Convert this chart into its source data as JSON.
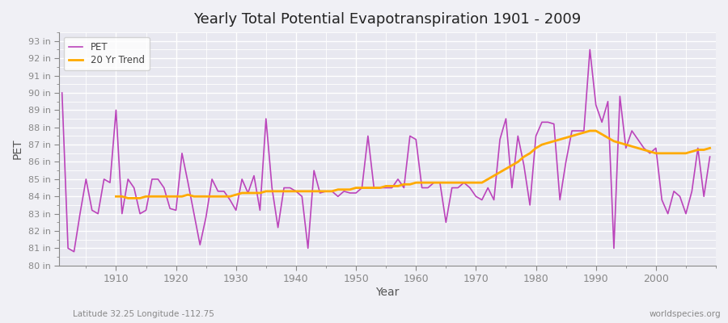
{
  "title": "Yearly Total Potential Evapotranspiration 1901 - 2009",
  "xlabel": "Year",
  "ylabel": "PET",
  "footnote_left": "Latitude 32.25 Longitude -112.75",
  "footnote_right": "worldspecies.org",
  "ylim": [
    80,
    93.5
  ],
  "xlim": [
    1900.5,
    2010
  ],
  "bg_color": "#f0f0f5",
  "plot_bg_color": "#e8e8f0",
  "grid_color": "#ffffff",
  "pet_color": "#bb44bb",
  "trend_color": "#ffaa00",
  "years": [
    1901,
    1902,
    1903,
    1904,
    1905,
    1906,
    1907,
    1908,
    1909,
    1910,
    1911,
    1912,
    1913,
    1914,
    1915,
    1916,
    1917,
    1918,
    1919,
    1920,
    1921,
    1922,
    1923,
    1924,
    1925,
    1926,
    1927,
    1928,
    1929,
    1930,
    1931,
    1932,
    1933,
    1934,
    1935,
    1936,
    1937,
    1938,
    1939,
    1940,
    1941,
    1942,
    1943,
    1944,
    1945,
    1946,
    1947,
    1948,
    1949,
    1950,
    1951,
    1952,
    1953,
    1954,
    1955,
    1956,
    1957,
    1958,
    1959,
    1960,
    1961,
    1962,
    1963,
    1964,
    1965,
    1966,
    1967,
    1968,
    1969,
    1970,
    1971,
    1972,
    1973,
    1974,
    1975,
    1976,
    1977,
    1978,
    1979,
    1980,
    1981,
    1982,
    1983,
    1984,
    1985,
    1986,
    1987,
    1988,
    1989,
    1990,
    1991,
    1992,
    1993,
    1994,
    1995,
    1996,
    1997,
    1998,
    1999,
    2000,
    2001,
    2002,
    2003,
    2004,
    2005,
    2006,
    2007,
    2008,
    2009
  ],
  "pet_values": [
    90.0,
    81.0,
    80.8,
    83.0,
    85.0,
    83.2,
    83.0,
    85.0,
    84.8,
    89.0,
    83.0,
    85.0,
    84.5,
    83.0,
    83.2,
    85.0,
    85.0,
    84.5,
    83.3,
    83.2,
    86.5,
    84.8,
    83.0,
    81.2,
    82.8,
    85.0,
    84.3,
    84.3,
    83.8,
    83.2,
    85.0,
    84.2,
    85.2,
    83.2,
    88.5,
    84.5,
    82.2,
    84.5,
    84.5,
    84.3,
    84.0,
    81.0,
    85.5,
    84.2,
    84.3,
    84.3,
    84.0,
    84.3,
    84.2,
    84.2,
    84.5,
    87.5,
    84.5,
    84.5,
    84.5,
    84.5,
    85.0,
    84.5,
    87.5,
    87.3,
    84.5,
    84.5,
    84.8,
    84.8,
    82.5,
    84.5,
    84.5,
    84.8,
    84.5,
    84.0,
    83.8,
    84.5,
    83.8,
    87.3,
    88.5,
    84.5,
    87.5,
    85.8,
    83.5,
    87.5,
    88.3,
    88.3,
    88.2,
    83.8,
    86.0,
    87.8,
    87.8,
    87.8,
    92.5,
    89.3,
    88.3,
    89.5,
    81.0,
    89.8,
    86.8,
    87.8,
    87.3,
    86.8,
    86.5,
    86.8,
    83.8,
    83.0,
    84.3,
    84.0,
    83.0,
    84.3,
    86.8,
    84.0,
    86.3
  ],
  "trend_values": [
    null,
    null,
    null,
    null,
    null,
    null,
    null,
    null,
    null,
    84.0,
    84.0,
    83.9,
    83.9,
    83.9,
    84.0,
    84.0,
    84.0,
    84.0,
    84.0,
    84.0,
    84.0,
    84.1,
    84.0,
    84.0,
    84.0,
    84.0,
    84.0,
    84.0,
    84.0,
    84.1,
    84.2,
    84.2,
    84.2,
    84.2,
    84.3,
    84.3,
    84.3,
    84.3,
    84.3,
    84.3,
    84.3,
    84.3,
    84.3,
    84.3,
    84.3,
    84.3,
    84.4,
    84.4,
    84.4,
    84.5,
    84.5,
    84.5,
    84.5,
    84.5,
    84.6,
    84.6,
    84.6,
    84.7,
    84.7,
    84.8,
    84.8,
    84.8,
    84.8,
    84.8,
    84.8,
    84.8,
    84.8,
    84.8,
    84.8,
    84.8,
    84.8,
    85.0,
    85.2,
    85.4,
    85.6,
    85.8,
    86.0,
    86.3,
    86.5,
    86.8,
    87.0,
    87.1,
    87.2,
    87.3,
    87.4,
    87.5,
    87.6,
    87.7,
    87.8,
    87.8,
    87.6,
    87.4,
    87.2,
    87.1,
    87.0,
    86.9,
    86.8,
    86.7,
    86.6,
    86.5,
    86.5,
    86.5,
    86.5,
    86.5,
    86.5,
    86.6,
    86.7,
    86.7,
    86.8
  ]
}
